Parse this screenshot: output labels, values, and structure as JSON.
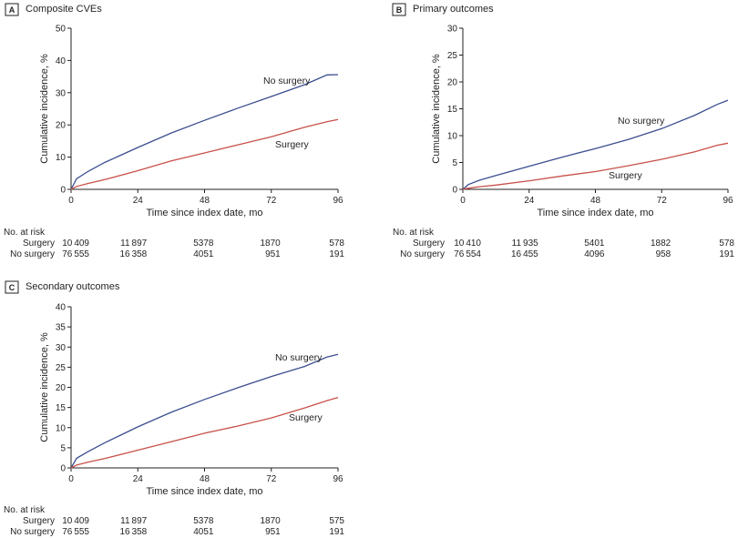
{
  "colors": {
    "no_surgery": "#3b4e8f",
    "surgery": "#c8504a"
  },
  "chart_data": [
    {
      "type": "line",
      "panel": "A",
      "title": "Composite CVEs",
      "xlabel": "Time since index date, mo",
      "ylabel": "Cumulative incidence, %",
      "xlim": [
        0,
        96
      ],
      "ylim": [
        0,
        50
      ],
      "xticks": [
        0,
        24,
        48,
        72,
        96
      ],
      "yticks": [
        0,
        10,
        20,
        30,
        40,
        50
      ],
      "x": [
        0,
        2,
        6,
        12,
        24,
        36,
        48,
        60,
        72,
        84,
        92,
        96
      ],
      "series": [
        {
          "name": "No surgery",
          "values": [
            0,
            3.3,
            5.5,
            8.3,
            13.0,
            17.5,
            21.4,
            25.2,
            28.8,
            32.5,
            35.5,
            35.6
          ]
        },
        {
          "name": "Surgery",
          "values": [
            0,
            0.9,
            1.8,
            3.0,
            5.8,
            8.8,
            11.3,
            13.8,
            16.3,
            19.3,
            21.0,
            21.7
          ]
        }
      ],
      "risk_table": {
        "header": "No. at risk",
        "rows": [
          {
            "label": "Surgery",
            "values": [
              "10409",
              "11897",
              "5378",
              "1870",
              "578"
            ]
          },
          {
            "label": "No surgery",
            "values": [
              "76555",
              "16358",
              "4051",
              "951",
              "191"
            ]
          }
        ]
      }
    },
    {
      "type": "line",
      "panel": "B",
      "title": "Primary outcomes",
      "xlabel": "Time since index date, mo",
      "ylabel": "Cumulative incidence, %",
      "xlim": [
        0,
        96
      ],
      "ylim": [
        0,
        30
      ],
      "xticks": [
        0,
        24,
        48,
        72,
        96
      ],
      "yticks": [
        0,
        5,
        10,
        15,
        20,
        25,
        30
      ],
      "x": [
        0,
        2,
        6,
        12,
        24,
        36,
        48,
        60,
        72,
        84,
        92,
        96
      ],
      "series": [
        {
          "name": "No surgery",
          "values": [
            0,
            0.9,
            1.7,
            2.6,
            4.3,
            6.0,
            7.6,
            9.3,
            11.3,
            13.8,
            15.8,
            16.6
          ]
        },
        {
          "name": "Surgery",
          "values": [
            0,
            0.2,
            0.5,
            0.8,
            1.6,
            2.5,
            3.3,
            4.4,
            5.6,
            7.0,
            8.2,
            8.6
          ]
        }
      ],
      "risk_table": {
        "header": "No. at risk",
        "rows": [
          {
            "label": "Surgery",
            "values": [
              "10410",
              "11935",
              "5401",
              "1882",
              "578"
            ]
          },
          {
            "label": "No surgery",
            "values": [
              "76554",
              "16455",
              "4096",
              "958",
              "191"
            ]
          }
        ]
      }
    },
    {
      "type": "line",
      "panel": "C",
      "title": "Secondary outcomes",
      "xlabel": "Time since index date, mo",
      "ylabel": "Cumulative incidence, %",
      "xlim": [
        0,
        96
      ],
      "ylim": [
        0,
        40
      ],
      "xticks": [
        0,
        24,
        48,
        72,
        96
      ],
      "yticks": [
        0,
        5,
        10,
        15,
        20,
        25,
        30,
        35,
        40
      ],
      "x": [
        0,
        2,
        6,
        12,
        24,
        36,
        48,
        60,
        72,
        84,
        92,
        96
      ],
      "series": [
        {
          "name": "No surgery",
          "values": [
            0,
            2.4,
            4.0,
            6.2,
            10.2,
            13.8,
            17.0,
            19.9,
            22.7,
            25.2,
            27.5,
            28.2
          ]
        },
        {
          "name": "Surgery",
          "values": [
            0,
            0.7,
            1.4,
            2.3,
            4.4,
            6.5,
            8.6,
            10.4,
            12.4,
            14.9,
            16.7,
            17.5
          ]
        }
      ],
      "risk_table": {
        "header": "No. at risk",
        "rows": [
          {
            "label": "Surgery",
            "values": [
              "10409",
              "11897",
              "5378",
              "1870",
              "575"
            ]
          },
          {
            "label": "No surgery",
            "values": [
              "76555",
              "16358",
              "4051",
              "951",
              "191"
            ]
          }
        ]
      }
    }
  ]
}
